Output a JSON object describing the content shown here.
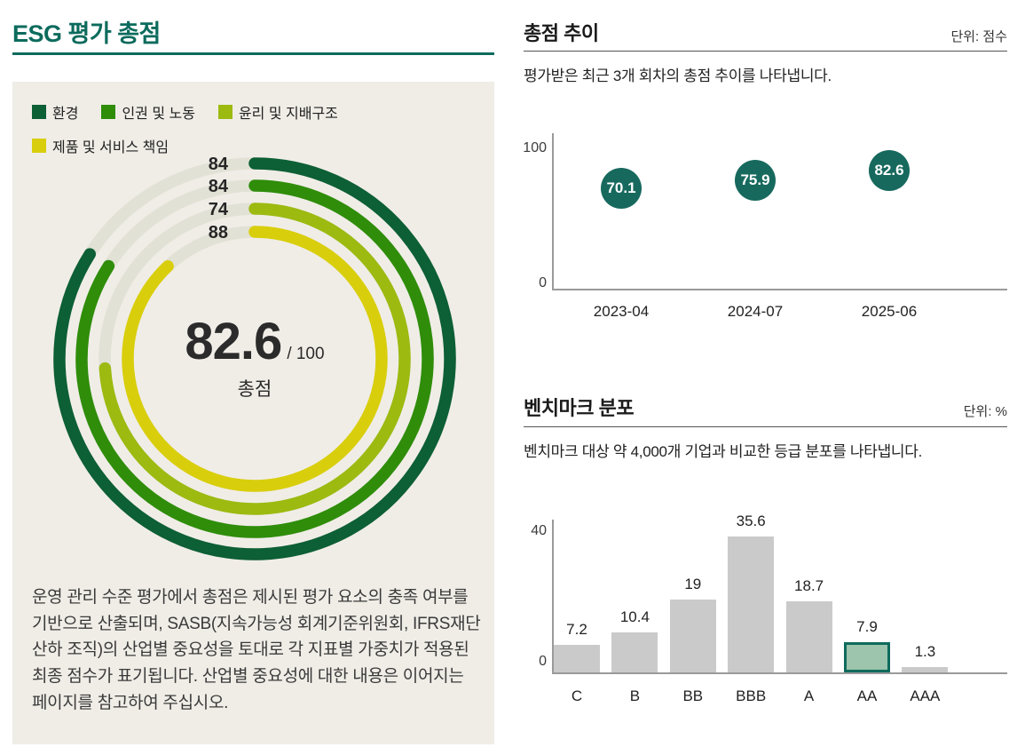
{
  "left_panel": {
    "title": "ESG 평가 총점",
    "footnote": "운영 관리 수준 평가에서 총점은 제시된 평가 요소의 충족 여부를 기반으로 산출되며, SASB(지속가능성 회계기준위원회, IFRS재단 산하 조직)의 산업별 중요성을 토대로 각 지표별 가중치가 적용된 최종 점수가 표기됩니다. 산업별 중요성에 대한 내용은 이어지는 페이지를 참고하여 주십시오."
  },
  "trend_section": {
    "title": "총점 추이",
    "unit": "단위: 점수",
    "description": "평가받은 최근 3개 회차의 총점 추이를 나타냅니다."
  },
  "benchmark_section": {
    "title": "벤치마크 분포",
    "unit": "단위: %",
    "description": "벤치마크 대상 약 4,000개 기업과 비교한 등급 분포를 나타냅니다."
  },
  "chart_data": [
    {
      "type": "radial-progress-rings",
      "title": "ESG 평가 총점",
      "max": 100,
      "track_color": "#e2e1d5",
      "rings": [
        {
          "label": "환경",
          "value": 84,
          "color": "#0d5f35"
        },
        {
          "label": "인권 및 노동",
          "value": 84,
          "color": "#2f8d0a"
        },
        {
          "label": "윤리 및 지배구조",
          "value": 74,
          "color": "#9cba10"
        },
        {
          "label": "제품 및 서비스 책임",
          "value": 88,
          "color": "#d9ce0c"
        }
      ],
      "center": {
        "score": "82.6",
        "max_label": "/ 100",
        "caption": "총점"
      }
    },
    {
      "type": "scatter",
      "title": "총점 추이",
      "unit": "점수",
      "x": [
        "2023-04",
        "2024-07",
        "2025-06"
      ],
      "values": [
        70.1,
        75.9,
        82.6
      ],
      "ylim": [
        0,
        100
      ],
      "point_color": "#17695e",
      "legend": "none",
      "grid": false
    },
    {
      "type": "bar",
      "title": "벤치마크 분포",
      "unit": "%",
      "categories": [
        "C",
        "B",
        "BB",
        "BBB",
        "A",
        "AA",
        "AAA"
      ],
      "values": [
        7.2,
        10.4,
        19,
        35.6,
        18.7,
        7.9,
        1.3
      ],
      "ylim": [
        0,
        40
      ],
      "bar_color": "#cacaca",
      "highlight": {
        "category": "AA",
        "fill": "#9dc4ac",
        "border": "#0f6b5c"
      },
      "legend": "none",
      "grid": false
    }
  ]
}
